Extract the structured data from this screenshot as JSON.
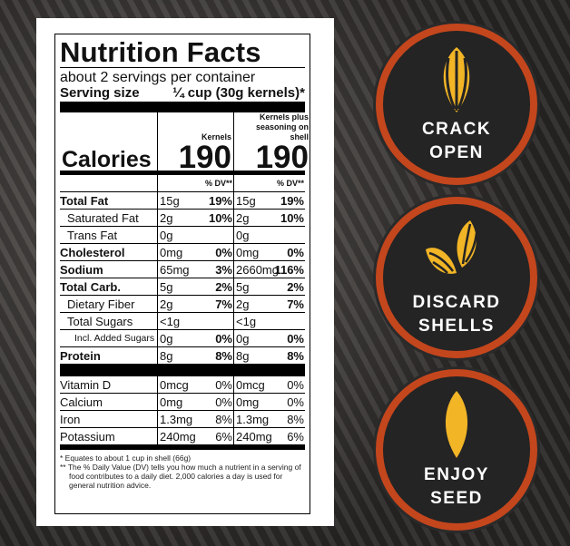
{
  "label": {
    "title": "Nutrition Facts",
    "servings": "about 2 servings per container",
    "serving_size_label": "Serving size",
    "serving_size_value": "¼ cup (30g kernels)*",
    "col_kernels": "Kernels",
    "col_shell": "Kernels plus seasoning on shell",
    "calories_label": "Calories",
    "calories_kernels": 190,
    "calories_shell": 190,
    "dv_header": [
      "% DV**",
      "% DV**"
    ],
    "rows": [
      {
        "nutrient": "Total Fat",
        "kernels": [
          "15g",
          "19%"
        ],
        "shell": [
          "15g",
          "19%"
        ]
      },
      {
        "nutrient": "Saturated Fat",
        "kernels": [
          "2g",
          "10%"
        ],
        "shell": [
          "2g",
          "10%"
        ]
      },
      {
        "nutrient": "Trans Fat",
        "kernels": [
          "0g"
        ],
        "shell": [
          "0g"
        ]
      },
      {
        "nutrient": "Cholesterol",
        "kernels": [
          "0mg",
          "0%"
        ],
        "shell": [
          "0mg",
          "0%"
        ]
      },
      {
        "nutrient": "Sodium",
        "kernels": [
          "65mg",
          "3%"
        ],
        "shell": [
          "2660mg",
          "116%"
        ]
      },
      {
        "nutrient": "Total Carb.",
        "kernels": [
          "5g",
          "2%"
        ],
        "shell": [
          "5g",
          "2%"
        ]
      },
      {
        "nutrient": "Dietary Fiber",
        "kernels": [
          "2g",
          "7%"
        ],
        "shell": [
          "2g",
          "7%"
        ]
      },
      {
        "nutrient": "Total Sugars",
        "kernels": [
          "<1g"
        ],
        "shell": [
          "<1g"
        ]
      },
      {
        "nutrient": "Incl. Added Sugars",
        "kernels": [
          "0g",
          "0%"
        ],
        "shell": [
          "0g",
          "0%"
        ]
      },
      {
        "nutrient": "Protein",
        "kernels": [
          "8g",
          "8%"
        ],
        "shell": [
          "8g",
          "8%"
        ]
      }
    ],
    "vitamins": [
      {
        "nutrient": "Vitamin D",
        "kernels": [
          "0mcg",
          "0%"
        ],
        "shell": [
          "0mcg",
          "0%"
        ]
      },
      {
        "nutrient": "Calcium",
        "kernels": [
          "0mg",
          "0%"
        ],
        "shell": [
          "0mg",
          "0%"
        ]
      },
      {
        "nutrient": "Iron",
        "kernels": [
          "1.3mg",
          "8%"
        ],
        "shell": [
          "1.3mg",
          "8%"
        ]
      },
      {
        "nutrient": "Potassium",
        "kernels": [
          "240mg",
          "6%"
        ],
        "shell": [
          "240mg",
          "6%"
        ]
      }
    ],
    "footnotes": [
      "* Equates to about 1 cup in shell (66g)",
      "** The % Daily Value (DV) tells you how much a nutrient in a serving of food contributes to a daily diet. 2,000 calories a day is used for general nutrition advice."
    ]
  },
  "steps": [
    {
      "text": [
        "CRACK",
        "OPEN"
      ]
    },
    {
      "text": [
        "DISCARD",
        "SHELLS"
      ]
    },
    {
      "text": [
        "ENJOY",
        "SEED"
      ]
    }
  ]
}
